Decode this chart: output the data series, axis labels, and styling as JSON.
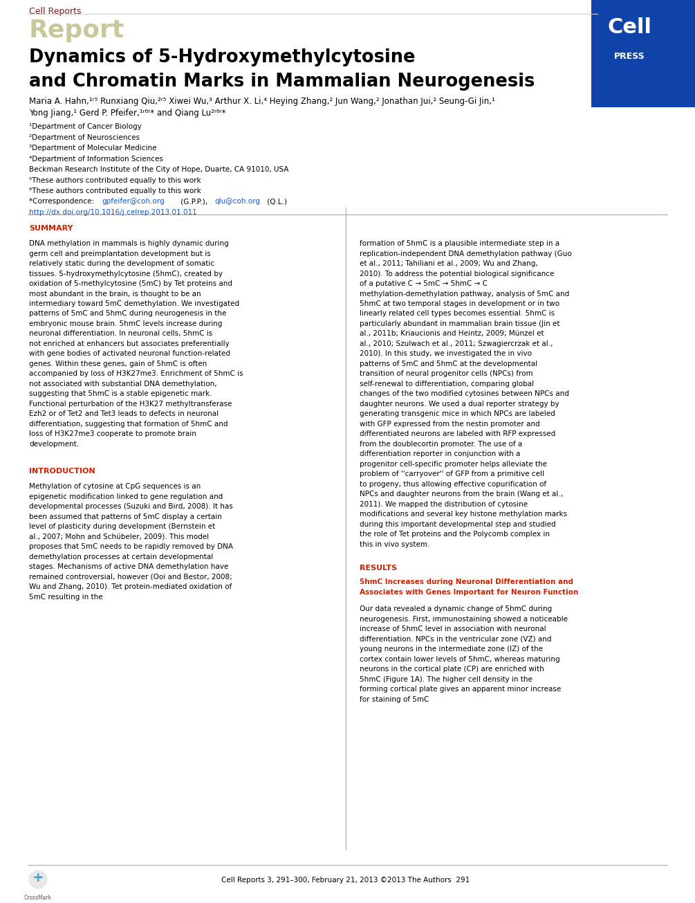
{
  "page_width": 10.05,
  "page_height": 13.05,
  "bg_color": "#ffffff",
  "journal_name": "Cell Reports",
  "journal_name_color": "#8b1a1a",
  "report_text": "Report",
  "report_color": "#c8c89a",
  "cell_press_bg": "#1144aa",
  "open_access_color": "#1144aa",
  "title_line1": "Dynamics of 5-Hydroxymethylcytosine",
  "title_line2": "and Chromatin Marks in Mammalian Neurogenesis",
  "title_color": "#000000",
  "summary_header": "SUMMARY",
  "summary_text": "DNA methylation in mammals is highly dynamic during germ cell and preimplantation development but is relatively static during the development of somatic tissues. 5-hydroxymethylcytosine (5hmC), created by oxidation of 5-methylcytosine (5mC) by Tet proteins and most abundant in the brain, is thought to be an intermediary toward 5mC demethylation. We investigated patterns of 5mC and 5hmC during neurogenesis in the embryonic mouse brain. 5hmC levels increase during neuronal differentiation. In neuronal cells, 5hmC is not enriched at enhancers but associates preferentially with gene bodies of activated neuronal function-related genes. Within these genes, gain of 5hmC is often accompanied by loss of H3K27me3. Enrichment of 5hmC is not associated with substantial DNA demethylation, suggesting that 5hmC is a stable epigenetic mark. Functional perturbation of the H3K27 methyltransferase Ezh2 or of Tet2 and Tet3 leads to defects in neuronal differentiation, suggesting that formation of 5hmC and loss of H3K27me3 cooperate to promote brain development.",
  "intro_header": "INTRODUCTION",
  "intro_text": "Methylation of cytosine at CpG sequences is an epigenetic modification linked to gene regulation and developmental processes (Suzuki and Bird, 2008). It has been assumed that patterns of 5mC display a certain level of plasticity during development (Bernstein et al., 2007; Mohn and Schübeler, 2009). This model proposes that 5mC needs to be rapidly removed by DNA demethylation processes at certain developmental stages. Mechanisms of active DNA demethylation have remained controversial, however (Ooi and Bestor, 2008; Wu and Zhang, 2010). Tet protein-mediated oxidation of 5mC resulting in the",
  "results_header": "RESULTS",
  "results_subheader": "5hmC Increases during Neuronal Differentiation and Associates with Genes Important for Neuron Function",
  "results_text": "Our data revealed a dynamic change of 5hmC during neurogenesis. First, immunostaining showed a noticeable increase of 5hmC level in association with neuronal differentiation. NPCs in the ventricular zone (VZ) and young neurons in the intermediate zone (IZ) of the cortex contain lower levels of 5hmC, whereas maturing neurons in the cortical plate (CP) are enriched with 5hmC (Figure 1A). The higher cell density in the forming cortical plate gives an apparent minor increase for staining of 5mC",
  "right_col_text": "formation of 5hmC is a plausible intermediate step in a replication-independent DNA demethylation pathway (Guo et al., 2011; Tahiliani et al., 2009; Wu and Zhang, 2010). To address the potential biological significance of a putative C → 5mC → 5hmC → C methylation-demethylation pathway, analysis of 5mC and 5hmC at two temporal stages in development or in two linearly related cell types becomes essential. 5hmC is particularly abundant in mammalian brain tissue (Jin et al., 2011b; Kriaucionis and Heintz, 2009; Münzel et al., 2010; Szulwach et al., 2011; Szwagiercrzak et al., 2010). In this study, we investigated the in vivo patterns of 5mC and 5hmC at the developmental transition of neural progenitor cells (NPCs) from self-renewal to differentiation, comparing global changes of the two modified cytosines between NPCs and daughter neurons. We used a dual reporter strategy by generating transgenic mice in which NPCs are labeled with GFP expressed from the nestin promoter and differentiated neurons are labeled with RFP expressed from the doublecortin promoter. The use of a differentiation reporter in conjunction with a progenitor cell-specific promoter helps alleviate the problem of ''carryover'' of GFP from a primitive cell to progeny, thus allowing effective copurification of NPCs and daughter neurons from the brain (Wang et al., 2011). We mapped the distribution of cytosine modifications and several key histone methylation marks during this important developmental step and studied the role of Tet proteins and the Polycomb complex in this in vivo system.",
  "footer_text": "Cell Reports 3, 291–300, February 21, 2013 ©2013 The Authors  291",
  "section_header_color": "#cc2200",
  "link_color": "#1155cc",
  "results_subheader_color": "#cc2200",
  "separator_color": "#888888"
}
